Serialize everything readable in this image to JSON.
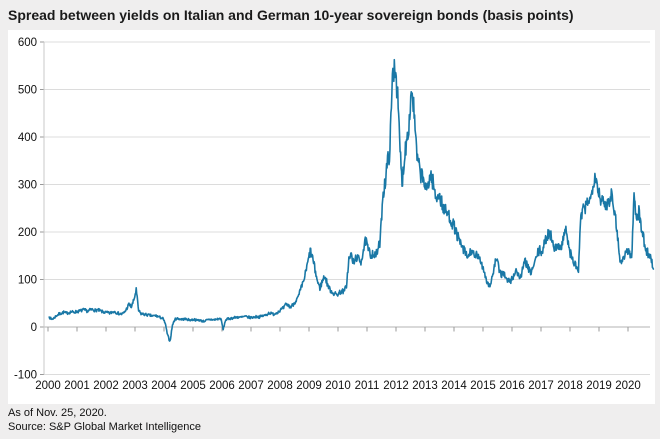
{
  "title": "Spread between yields on Italian and German 10-year sovereign bonds (basis points)",
  "footer": {
    "as_of": "As of Nov. 25, 2020.",
    "source": "Source: S&P Global Market Intelligence"
  },
  "chart_data": {
    "type": "line",
    "title": "Spread between yields on Italian and German 10-year sovereign bonds (basis points)",
    "xlabel": "",
    "ylabel": "",
    "ylim": [
      -100,
      600
    ],
    "xlim": [
      2000,
      2021
    ],
    "grid": "horizontal",
    "legend_position": "none",
    "y_ticks": [
      600,
      500,
      400,
      300,
      200,
      100,
      0,
      -100
    ],
    "x_ticks": [
      2000,
      2001,
      2002,
      2003,
      2004,
      2005,
      2006,
      2007,
      2008,
      2009,
      2010,
      2011,
      2012,
      2013,
      2014,
      2015,
      2016,
      2017,
      2018,
      2019,
      2020
    ],
    "colors": {
      "line": "#1a78a6",
      "grid": "#dcdcdc",
      "zero_line": "#b3b3b3",
      "spine": "#c9c9c9",
      "tick": "#999999",
      "plot_background": "#ffffff",
      "page_background": "#efeeee"
    },
    "series": [
      {
        "name": "Italy-Germany 10-year sovereign bond yield spread (basis points)",
        "frequency": "monthly",
        "x_start_year": 2000,
        "x_end_label": "Nov 2020",
        "values": [
          21,
          16,
          19,
          24,
          27,
          29,
          31,
          29,
          30,
          32,
          31,
          32,
          33,
          34,
          36,
          35,
          33,
          36,
          37,
          35,
          36,
          34,
          32,
          31,
          30,
          29,
          31,
          33,
          30,
          28,
          27,
          30,
          38,
          48,
          42,
          56,
          78,
          34,
          28,
          27,
          26,
          25,
          24,
          23,
          24,
          22,
          20,
          18,
          8,
          -18,
          -30,
          4,
          16,
          18,
          17,
          16,
          17,
          16,
          15,
          15,
          16,
          14,
          15,
          13,
          12,
          14,
          15,
          16,
          15,
          16,
          17,
          18,
          -5,
          15,
          17,
          18,
          19,
          20,
          21,
          20,
          21,
          22,
          21,
          20,
          20,
          21,
          22,
          21,
          23,
          24,
          26,
          30,
          28,
          27,
          30,
          33,
          37,
          40,
          48,
          45,
          42,
          48,
          55,
          62,
          78,
          92,
          112,
          135,
          160,
          145,
          120,
          96,
          82,
          96,
          108,
          92,
          80,
          74,
          70,
          68,
          72,
          76,
          74,
          88,
          142,
          152,
          132,
          148,
          142,
          138,
          162,
          182,
          162,
          152,
          156,
          148,
          162,
          182,
          278,
          305,
          345,
          375,
          520,
          560,
          500,
          390,
          300,
          360,
          400,
          435,
          505,
          450,
          365,
          335,
          320,
          310,
          282,
          308,
          320,
          300,
          268,
          283,
          268,
          252,
          243,
          238,
          228,
          218,
          205,
          190,
          176,
          166,
          158,
          146,
          154,
          164,
          142,
          154,
          140,
          134,
          118,
          98,
          86,
          96,
          122,
          144,
          124,
          110,
          116,
          100,
          97,
          98,
          104,
          122,
          110,
          104,
          122,
          140,
          126,
          114,
          122,
          136,
          154,
          161,
          158,
          176,
          192,
          200,
          186,
          170,
          164,
          174,
          168,
          196,
          205,
          165,
          150,
          136,
          128,
          118,
          235,
          245,
          250,
          272,
          265,
          305,
          325,
          292,
          275,
          262,
          255,
          262,
          272,
          285,
          238,
          205,
          145,
          136,
          152,
          160,
          160,
          142,
          278,
          232,
          242,
          210,
          185,
          160,
          155,
          145,
          122
        ]
      }
    ]
  }
}
